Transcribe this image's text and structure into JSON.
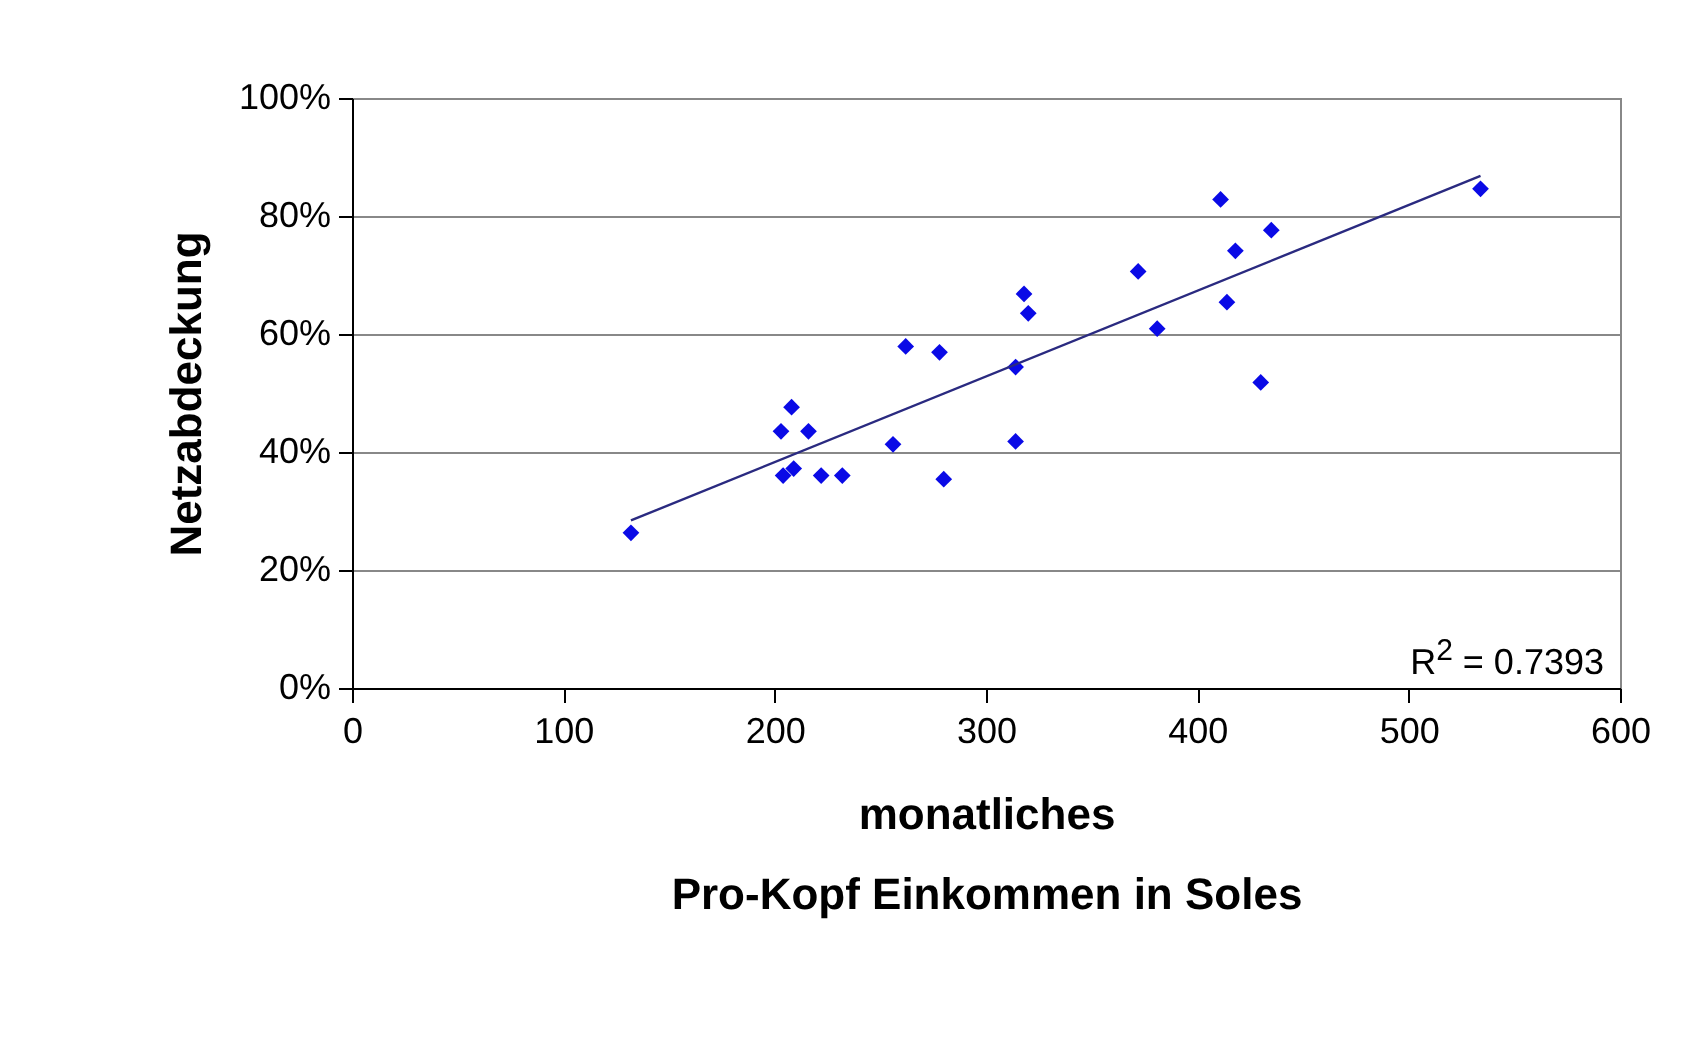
{
  "chart_data": {
    "type": "scatter",
    "xlabel": "monatliches\nPro-Kopf Einkommen in Soles",
    "ylabel": "Netzabdeckung",
    "xlim": [
      0,
      600
    ],
    "xticks": [
      0,
      100,
      200,
      300,
      400,
      500,
      600
    ],
    "ylim": [
      0,
      100
    ],
    "yticks": [
      {
        "value": 0,
        "label": "0%"
      },
      {
        "value": 20,
        "label": "20%"
      },
      {
        "value": 40,
        "label": "40%"
      },
      {
        "value": 60,
        "label": "60%"
      },
      {
        "value": 80,
        "label": "80%"
      },
      {
        "value": 100,
        "label": "100%"
      }
    ],
    "grid": "y",
    "annotations": [
      "R$^{2}$ = 0.7393"
    ],
    "series": [
      {
        "marker": "diamond",
        "color": "#0a0ae6",
        "x": [
          132,
          203,
          208,
          216,
          204,
          209,
          222,
          232,
          256,
          262,
          278,
          280,
          314,
          314,
          318,
          320,
          372,
          381,
          411,
          418,
          414,
          435,
          430,
          534
        ],
        "values": [
          26.3,
          43.5,
          47.6,
          43.5,
          36,
          37.2,
          36,
          36,
          41.3,
          57.9,
          56.9,
          35.4,
          54.4,
          41.8,
          66.8,
          63.5,
          70.6,
          60.9,
          82.8,
          74.1,
          65.4,
          77.6,
          51.8,
          84.6
        ]
      },
      {
        "type": "line",
        "color": "#2a2a80",
        "line_style": "solid",
        "x": [
          132,
          534
        ],
        "values": [
          28.4,
          86.8
        ]
      }
    ]
  }
}
